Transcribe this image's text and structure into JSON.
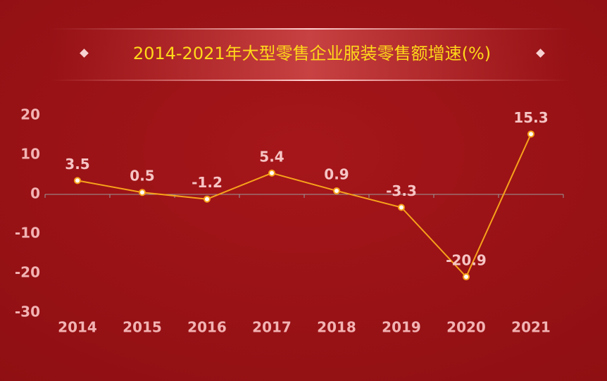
{
  "chart_data": {
    "type": "line",
    "title": "2014-2021年大型零售企业服装零售额增速(%)",
    "categories": [
      "2014",
      "2015",
      "2016",
      "2017",
      "2018",
      "2019",
      "2020",
      "2021"
    ],
    "values": [
      3.5,
      0.5,
      -1.2,
      5.4,
      0.9,
      -3.3,
      -20.9,
      15.3
    ],
    "color": "#f7a21b",
    "ylim": [
      -30,
      20
    ],
    "yticks": [
      -30,
      -20,
      -10,
      0,
      10,
      20
    ],
    "grid": false
  }
}
